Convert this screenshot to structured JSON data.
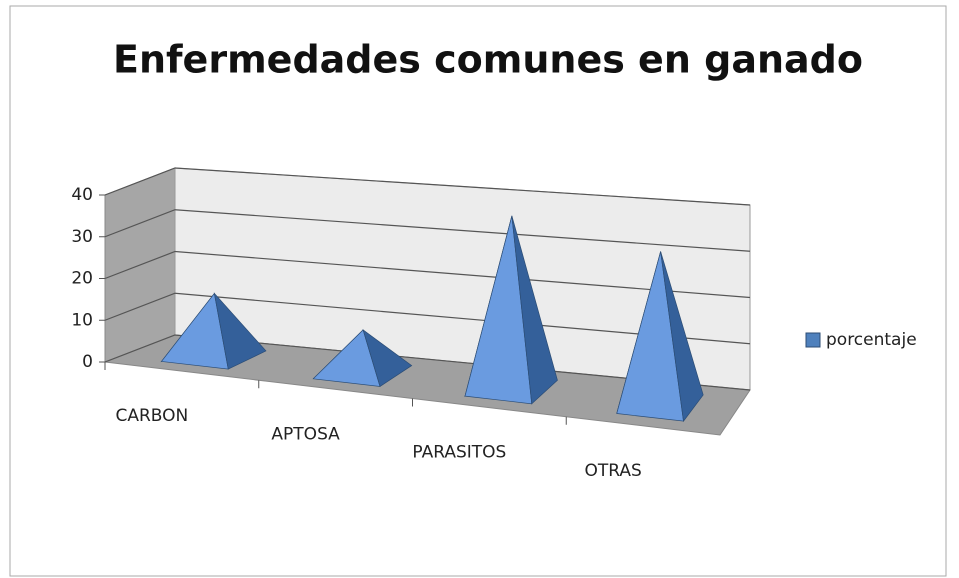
{
  "chart_data": {
    "type": "pyramid3d",
    "title": "Enfermedades comunes en ganado",
    "categories": [
      "CARBON",
      "APTOSA",
      "PARASITOS",
      "OTRAS"
    ],
    "series": [
      {
        "name": "porcentaje",
        "color": "#4f81bd",
        "values": [
          15,
          10,
          40,
          35
        ]
      }
    ],
    "ylim": [
      0,
      40
    ],
    "yticks": [
      0,
      10,
      20,
      30,
      40
    ],
    "grid": true,
    "legend": "right"
  }
}
